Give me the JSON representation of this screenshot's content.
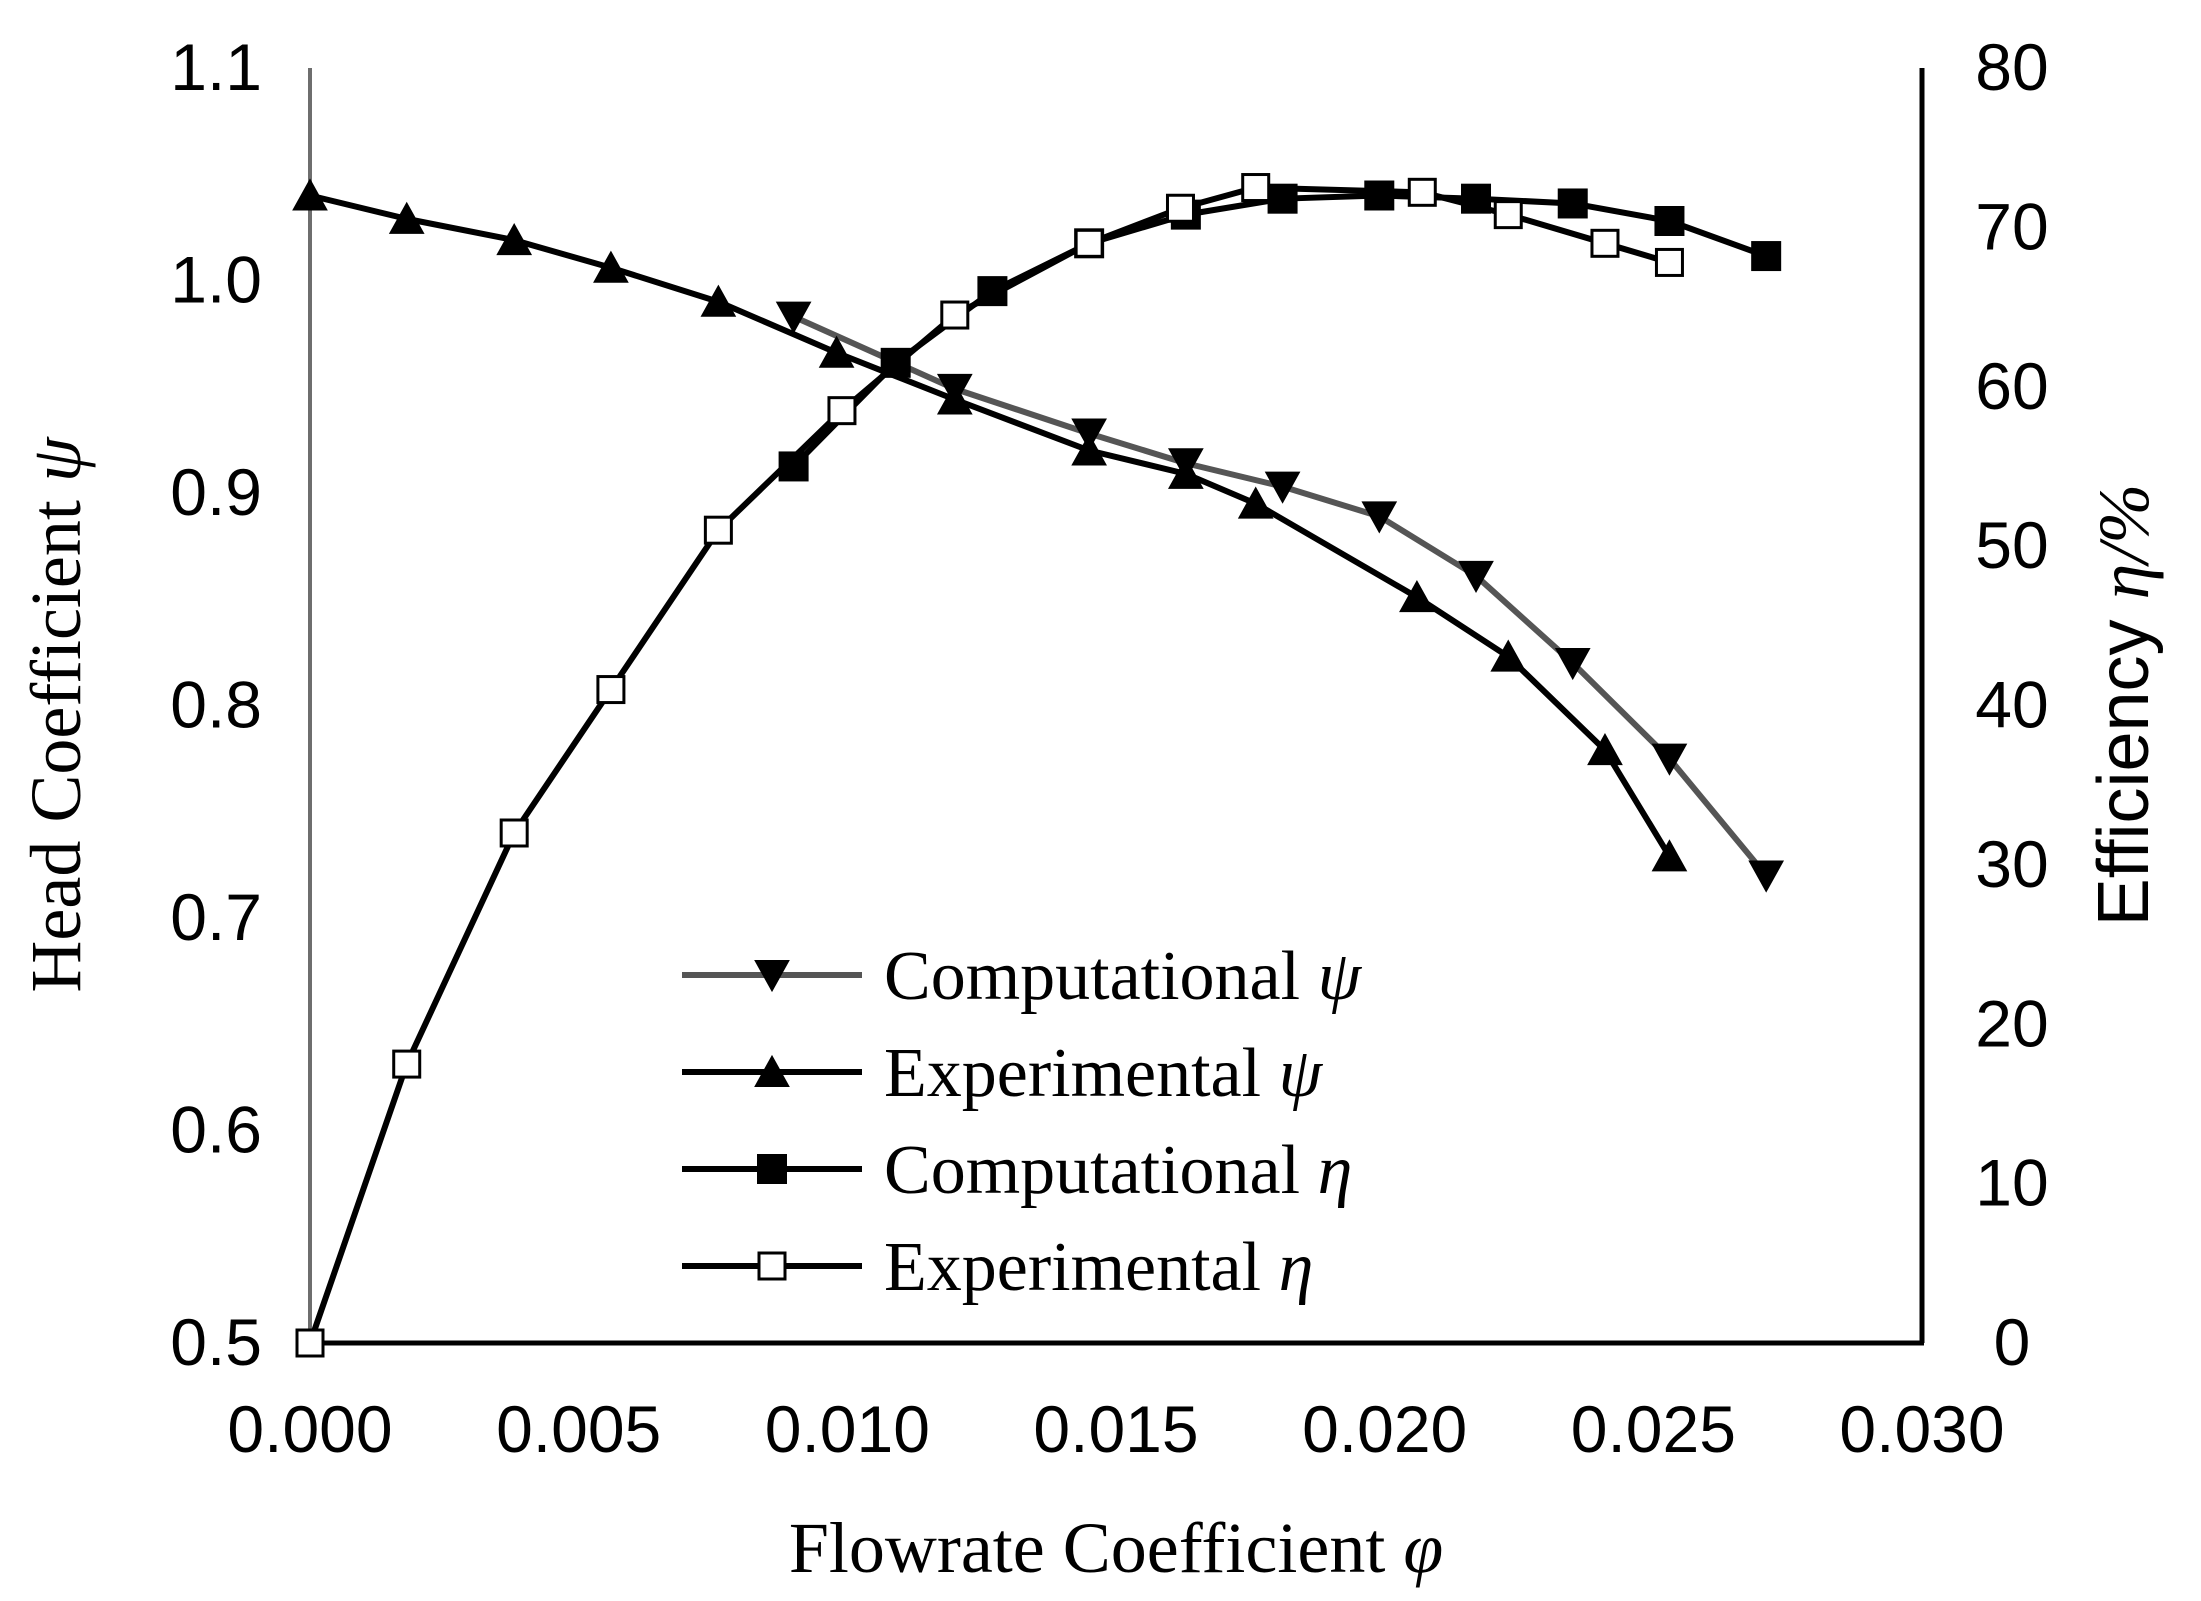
{
  "chart_data": {
    "type": "line",
    "xlabel": "Flowrate Coefficient",
    "xlabel_symbol": "φ",
    "ylabel": "Head Coefficient",
    "ylabel_symbol": "ψ",
    "y2label": "Efficiency",
    "y2label_symbol": "η/%",
    "xlim": [
      0.0,
      0.03
    ],
    "ylim": [
      0.5,
      1.1
    ],
    "y2lim": [
      0,
      80
    ],
    "x_ticks": [
      "0.000",
      "0.005",
      "0.010",
      "0.015",
      "0.020",
      "0.025",
      "0.030"
    ],
    "x_tick_values": [
      0.0,
      0.005,
      0.01,
      0.015,
      0.02,
      0.025,
      0.03
    ],
    "y_ticks": [
      "0.5",
      "0.6",
      "0.7",
      "0.8",
      "0.9",
      "1.0",
      "1.1"
    ],
    "y_tick_values": [
      0.5,
      0.6,
      0.7,
      0.8,
      0.9,
      1.0,
      1.1
    ],
    "y2_ticks": [
      "0",
      "10",
      "20",
      "30",
      "40",
      "50",
      "60",
      "70",
      "80"
    ],
    "y2_tick_values": [
      0,
      10,
      20,
      30,
      40,
      50,
      60,
      70,
      80
    ],
    "grid": false,
    "legend_position": "center-bottom",
    "series": [
      {
        "name": "Computational",
        "symbol": "ψ",
        "axis": "left",
        "marker": "triangle-down",
        "color": "#555555",
        "x": [
          0.009,
          0.012,
          0.0145,
          0.0163,
          0.0181,
          0.0199,
          0.0217,
          0.0235,
          0.0253,
          0.0271
        ],
        "y": [
          0.983,
          0.949,
          0.928,
          0.914,
          0.903,
          0.889,
          0.861,
          0.82,
          0.775,
          0.72
        ]
      },
      {
        "name": "Experimental",
        "symbol": "ψ",
        "axis": "left",
        "marker": "triangle-up",
        "color": "#000000",
        "x": [
          0.0,
          0.0018,
          0.0038,
          0.0056,
          0.0076,
          0.0098,
          0.012,
          0.0145,
          0.0163,
          0.0176,
          0.0206,
          0.0223,
          0.0241,
          0.0253
        ],
        "y": [
          1.04,
          1.029,
          1.019,
          1.006,
          0.99,
          0.966,
          0.944,
          0.92,
          0.909,
          0.895,
          0.851,
          0.823,
          0.779,
          0.729
        ]
      },
      {
        "name": "Computational",
        "symbol": "η",
        "axis": "right",
        "marker": "square-filled",
        "color": "#000000",
        "x": [
          0.009,
          0.0109,
          0.0127,
          0.0145,
          0.0163,
          0.0181,
          0.0199,
          0.0217,
          0.0235,
          0.0253,
          0.0271
        ],
        "y": [
          55.0,
          61.5,
          66.0,
          69.0,
          70.8,
          71.8,
          72.0,
          71.8,
          71.5,
          70.4,
          68.2
        ]
      },
      {
        "name": "Experimental",
        "symbol": "η",
        "axis": "right",
        "marker": "square-open",
        "color": "#000000",
        "x": [
          0.0,
          0.0018,
          0.0038,
          0.0056,
          0.0076,
          0.0099,
          0.012,
          0.0145,
          0.0162,
          0.0176,
          0.0207,
          0.0223,
          0.0241,
          0.0253
        ],
        "y": [
          0.0,
          17.5,
          32.0,
          41.0,
          51.0,
          58.5,
          64.5,
          69.0,
          71.2,
          72.5,
          72.2,
          70.8,
          69.0,
          67.8
        ]
      }
    ]
  }
}
